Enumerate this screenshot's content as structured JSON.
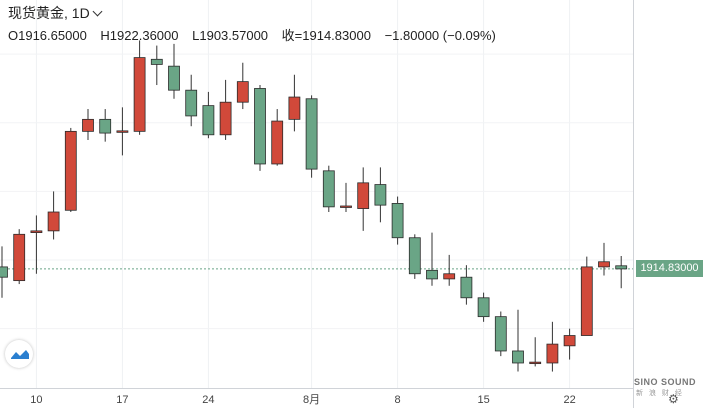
{
  "header": {
    "symbol": "现货黄金",
    "separator": ",",
    "interval": "1D",
    "open_label": "O1916.65000",
    "high_label": "H1922.36000",
    "low_label": "L1903.57000",
    "close_label": "收=1914.83000",
    "change_label": "−1.80000 (−0.09%)"
  },
  "price_tag": "1914.83000",
  "watermark": {
    "line1": "SINO SOUND",
    "line2": "新 浪 财 经"
  },
  "colors": {
    "up": "#d1493a",
    "down": "#6aa586",
    "text": "#222222"
  },
  "chart_data": {
    "type": "candlestick",
    "x_ticks": [
      "10",
      "17",
      "24",
      "8月",
      "8",
      "15",
      "22"
    ],
    "last_price": 1914.83,
    "candles": [
      {
        "o": 1916.0,
        "c": 1910.0,
        "h": 1928.0,
        "l": 1898.0
      },
      {
        "o": 1908.0,
        "c": 1935.0,
        "h": 1938.0,
        "l": 1906.0
      },
      {
        "o": 1936.0,
        "c": 1937.0,
        "h": 1946.0,
        "l": 1912.0
      },
      {
        "o": 1937.0,
        "c": 1948.0,
        "h": 1960.0,
        "l": 1932.0
      },
      {
        "o": 1949.0,
        "c": 1995.0,
        "h": 1997.0,
        "l": 1948.0
      },
      {
        "o": 1995.0,
        "c": 2002.0,
        "h": 2008.0,
        "l": 1990.0
      },
      {
        "o": 2002.0,
        "c": 1994.0,
        "h": 2008.0,
        "l": 1989.0
      },
      {
        "o": 1995.0,
        "c": 1995.3,
        "h": 2009.0,
        "l": 1981.0
      },
      {
        "o": 1995.0,
        "c": 2038.0,
        "h": 2048.0,
        "l": 1993.0
      },
      {
        "o": 2037.0,
        "c": 2034.0,
        "h": 2045.0,
        "l": 2022.0
      },
      {
        "o": 2033.0,
        "c": 2019.0,
        "h": 2046.0,
        "l": 2014.0
      },
      {
        "o": 2019.0,
        "c": 2004.0,
        "h": 2028.0,
        "l": 1998.0
      },
      {
        "o": 2010.0,
        "c": 1993.0,
        "h": 2018.0,
        "l": 1991.0
      },
      {
        "o": 1993.0,
        "c": 2012.0,
        "h": 2025.0,
        "l": 1990.0
      },
      {
        "o": 2012.0,
        "c": 2024.0,
        "h": 2035.0,
        "l": 2008.0
      },
      {
        "o": 2020.0,
        "c": 1976.0,
        "h": 2022.0,
        "l": 1972.0
      },
      {
        "o": 1976.0,
        "c": 2001.0,
        "h": 2008.0,
        "l": 1975.0
      },
      {
        "o": 2002.0,
        "c": 2015.0,
        "h": 2028.0,
        "l": 1995.0
      },
      {
        "o": 2014.0,
        "c": 1973.0,
        "h": 2016.0,
        "l": 1968.0
      },
      {
        "o": 1972.0,
        "c": 1951.0,
        "h": 1975.0,
        "l": 1948.0
      },
      {
        "o": 1951.0,
        "c": 1951.5,
        "h": 1965.0,
        "l": 1948.0
      },
      {
        "o": 1950.0,
        "c": 1965.0,
        "h": 1974.0,
        "l": 1937.0
      },
      {
        "o": 1964.0,
        "c": 1952.0,
        "h": 1974.0,
        "l": 1942.0
      },
      {
        "o": 1953.0,
        "c": 1933.0,
        "h": 1957.0,
        "l": 1929.0
      },
      {
        "o": 1933.0,
        "c": 1912.0,
        "h": 1935.0,
        "l": 1909.0
      },
      {
        "o": 1914.0,
        "c": 1909.0,
        "h": 1936.0,
        "l": 1905.0
      },
      {
        "o": 1909.0,
        "c": 1912.0,
        "h": 1923.0,
        "l": 1905.0
      },
      {
        "o": 1910.0,
        "c": 1898.0,
        "h": 1917.0,
        "l": 1894.0
      },
      {
        "o": 1898.0,
        "c": 1887.0,
        "h": 1901.0,
        "l": 1884.0
      },
      {
        "o": 1887.0,
        "c": 1867.0,
        "h": 1890.0,
        "l": 1864.0
      },
      {
        "o": 1867.0,
        "c": 1860.0,
        "h": 1891.0,
        "l": 1855.0
      },
      {
        "o": 1860.0,
        "c": 1860.5,
        "h": 1875.0,
        "l": 1858.0
      },
      {
        "o": 1860.0,
        "c": 1871.0,
        "h": 1884.0,
        "l": 1855.0
      },
      {
        "o": 1870.0,
        "c": 1876.0,
        "h": 1880.0,
        "l": 1862.0
      },
      {
        "o": 1876.0,
        "c": 1916.0,
        "h": 1922.0,
        "l": 1876.0
      },
      {
        "o": 1916.0,
        "c": 1919.0,
        "h": 1930.0,
        "l": 1911.0
      },
      {
        "o": 1916.65,
        "c": 1914.83,
        "h": 1922.36,
        "l": 1903.57
      }
    ]
  }
}
